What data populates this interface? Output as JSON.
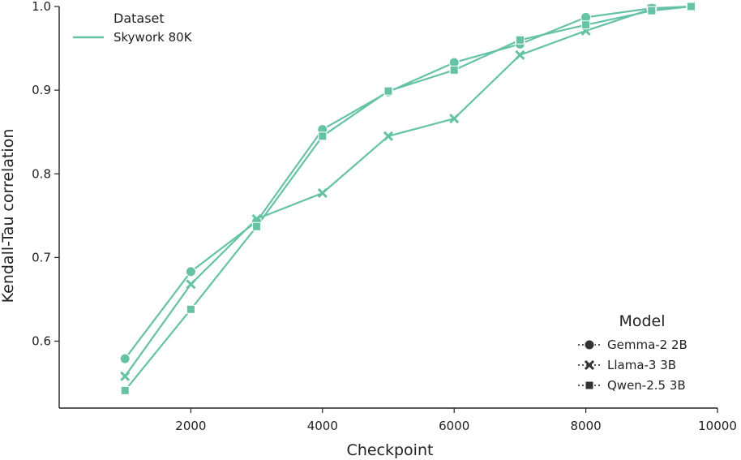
{
  "chart_data": {
    "type": "line",
    "title": "",
    "xlabel": "Checkpoint",
    "ylabel": "Kendall-Tau correlation",
    "xlim": [
      0,
      10000
    ],
    "ylim": [
      0.52,
      1.0
    ],
    "x_ticks": [
      2000,
      4000,
      6000,
      8000,
      10000
    ],
    "y_ticks": [
      0.6,
      0.7,
      0.8,
      0.9,
      1.0
    ],
    "grid": false,
    "line_color": "#66c2a5",
    "legend_dataset": {
      "title": "Dataset",
      "position": "top-left",
      "entries": [
        "Skywork 80K"
      ]
    },
    "legend_model": {
      "title": "Model",
      "position": "bottom-right",
      "entries": [
        {
          "label": "Gemma-2 2B",
          "marker": "circle"
        },
        {
          "label": "Llama-3 3B",
          "marker": "x"
        },
        {
          "label": "Qwen-2.5 3B",
          "marker": "square"
        }
      ]
    },
    "series": [
      {
        "name": "Gemma-2 2B",
        "dataset": "Skywork 80K",
        "marker": "circle",
        "x": [
          1000,
          2000,
          3000,
          4000,
          5000,
          6000,
          7000,
          8000,
          9000,
          9600
        ],
        "y": [
          0.579,
          0.683,
          0.743,
          0.853,
          0.898,
          0.933,
          0.955,
          0.987,
          0.998,
          1.0
        ]
      },
      {
        "name": "Llama-3 3B",
        "dataset": "Skywork 80K",
        "marker": "x",
        "x": [
          1000,
          2000,
          3000,
          4000,
          5000,
          6000,
          7000,
          8000,
          9000,
          9600
        ],
        "y": [
          0.558,
          0.668,
          0.746,
          0.777,
          0.845,
          0.866,
          0.942,
          0.971,
          0.997,
          1.0
        ]
      },
      {
        "name": "Qwen-2.5 3B",
        "dataset": "Skywork 80K",
        "marker": "square",
        "x": [
          1000,
          2000,
          3000,
          4000,
          5000,
          6000,
          7000,
          8000,
          9000,
          9600
        ],
        "y": [
          0.541,
          0.638,
          0.737,
          0.845,
          0.899,
          0.924,
          0.96,
          0.978,
          0.995,
          1.0
        ]
      }
    ]
  }
}
